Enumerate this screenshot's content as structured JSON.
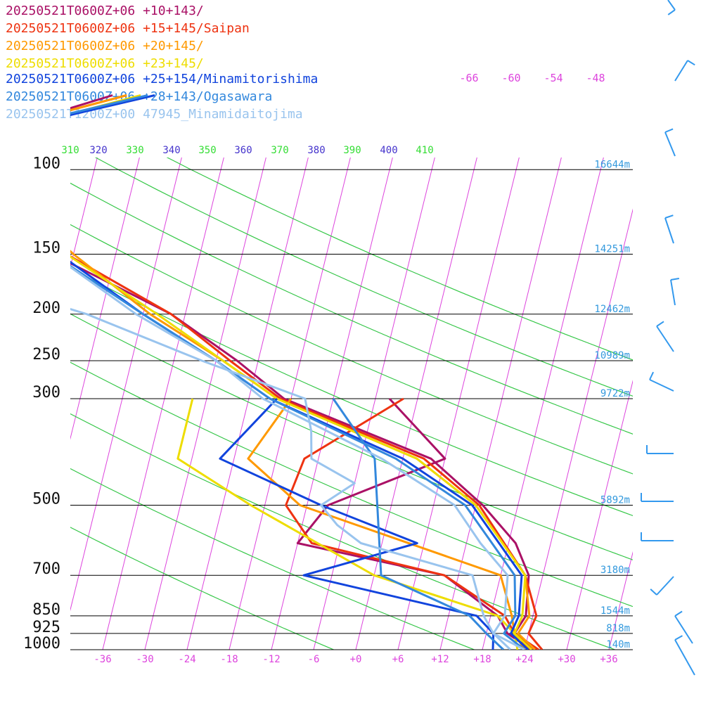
{
  "legend": [
    {
      "text": "20250521T0600Z+06 +10+143/",
      "color": "#aa1166"
    },
    {
      "text": "20250521T0600Z+06 +15+145/Saipan",
      "color": "#ee3311"
    },
    {
      "text": "20250521T0600Z+06 +20+145/",
      "color": "#ff9900"
    },
    {
      "text": "20250521T0600Z+06 +23+145/",
      "color": "#eedd00"
    },
    {
      "text": "20250521T0600Z+06 +25+154/Minamitorishima",
      "color": "#1144dd"
    },
    {
      "text": "20250521T0600Z+06 +28+143/Ogasawara",
      "color": "#3388dd"
    },
    {
      "text": "20250521T1200Z+00 47945_Minamidaitojima",
      "color": "#99c4ee"
    }
  ],
  "chart_data": {
    "type": "line",
    "subtype": "skew-T log-p diagram",
    "x_axis": {
      "label": "Temperature (°C)",
      "ticks": [
        "-36",
        "-30",
        "-24",
        "-18",
        "-12",
        "-6",
        "+0",
        "+6",
        "+12",
        "+18",
        "+24",
        "+30",
        "+36"
      ],
      "range": [
        -40,
        40
      ]
    },
    "y_axis": {
      "label": "Pressure (hPa)",
      "scale": "log",
      "ticks": [
        "100",
        "150",
        "200",
        "250",
        "300",
        "500",
        "700",
        "850",
        "925",
        "1000"
      ],
      "range": [
        100,
        1000
      ]
    },
    "heights": [
      {
        "p": 100,
        "label": "16644m"
      },
      {
        "p": 150,
        "label": "14251m"
      },
      {
        "p": 200,
        "label": "12462m"
      },
      {
        "p": 250,
        "label": "10989m"
      },
      {
        "p": 300,
        "label": "9722m"
      },
      {
        "p": 500,
        "label": "5892m"
      },
      {
        "p": 700,
        "label": "3180m"
      },
      {
        "p": 850,
        "label": "1544m"
      },
      {
        "p": 925,
        "label": "818m"
      },
      {
        "p": 1000,
        "label": "140m"
      }
    ],
    "mixing_ratio_labels": [
      "-66",
      "-60",
      "-54",
      "-48"
    ],
    "theta_labels": [
      {
        "text": "310",
        "color": "#33dd33"
      },
      {
        "text": "320",
        "color": "#4433cc"
      },
      {
        "text": "330",
        "color": "#33dd33"
      },
      {
        "text": "340",
        "color": "#4433cc"
      },
      {
        "text": "350",
        "color": "#33dd33"
      },
      {
        "text": "360",
        "color": "#4433cc"
      },
      {
        "text": "370",
        "color": "#33dd33"
      },
      {
        "text": "380",
        "color": "#4433cc"
      },
      {
        "text": "390",
        "color": "#33dd33"
      },
      {
        "text": "400",
        "color": "#4433cc"
      },
      {
        "text": "410",
        "color": "#33dd33"
      }
    ],
    "colors": {
      "isotherm": "#dd44dd",
      "dry_adiabat": "#4433cc",
      "moist_adiabat": "#33dd33",
      "isobar": "#000000",
      "wind": "#3399ee"
    },
    "series": [
      {
        "name": "20250521T0600Z+06 +10+143/",
        "color": "#aa1166",
        "temperature": [
          [
            1000,
            25.5
          ],
          [
            925,
            22
          ],
          [
            850,
            23
          ],
          [
            700,
            22
          ],
          [
            600,
            19
          ],
          [
            500,
            13
          ],
          [
            400,
            4
          ],
          [
            300,
            -19
          ],
          [
            250,
            -27
          ],
          [
            200,
            -38
          ],
          [
            150,
            -57
          ],
          [
            125,
            -72
          ],
          [
            100,
            -78
          ],
          [
            80,
            -66
          ],
          [
            70,
            -54
          ]
        ],
        "dewpoint": [
          [
            1000,
            25
          ],
          [
            925,
            21
          ],
          [
            850,
            19
          ],
          [
            700,
            10
          ],
          [
            600,
            -12
          ],
          [
            500,
            -9
          ],
          [
            400,
            6
          ],
          [
            300,
            -4
          ]
        ]
      },
      {
        "name": "20250521T0600Z+06 +15+145/Saipan",
        "color": "#ee3311",
        "temperature": [
          [
            1000,
            26.5
          ],
          [
            925,
            24
          ],
          [
            850,
            24.5
          ],
          [
            700,
            21.5
          ],
          [
            500,
            12.5
          ],
          [
            400,
            3
          ],
          [
            300,
            -19.5
          ],
          [
            250,
            -28
          ],
          [
            200,
            -38
          ],
          [
            150,
            -55
          ],
          [
            100,
            -71
          ],
          [
            80,
            -66
          ],
          [
            70,
            -52
          ]
        ],
        "dewpoint": [
          [
            1000,
            26
          ],
          [
            925,
            22
          ],
          [
            850,
            20
          ],
          [
            700,
            10
          ],
          [
            600,
            -10
          ],
          [
            500,
            -15
          ],
          [
            400,
            -14
          ],
          [
            300,
            -2
          ]
        ]
      },
      {
        "name": "20250521T0600Z+06 +20+145/",
        "color": "#ff9900",
        "temperature": [
          [
            1000,
            25.5
          ],
          [
            925,
            22.5
          ],
          [
            850,
            23.5
          ],
          [
            700,
            21.5
          ],
          [
            500,
            12
          ],
          [
            400,
            2
          ],
          [
            300,
            -20
          ],
          [
            250,
            -29
          ],
          [
            200,
            -41
          ],
          [
            150,
            -54
          ],
          [
            100,
            -70
          ],
          [
            80,
            -66
          ],
          [
            70,
            -52
          ]
        ],
        "dewpoint": [
          [
            1000,
            24
          ],
          [
            925,
            22
          ],
          [
            850,
            21
          ],
          [
            700,
            18
          ],
          [
            500,
            -13
          ],
          [
            400,
            -22
          ],
          [
            300,
            -18
          ]
        ]
      },
      {
        "name": "20250521T0600Z+06 +23+145/",
        "color": "#eedd00",
        "temperature": [
          [
            1000,
            25
          ],
          [
            925,
            22
          ],
          [
            850,
            22.5
          ],
          [
            700,
            21.5
          ],
          [
            500,
            12
          ],
          [
            400,
            2
          ],
          [
            300,
            -20
          ],
          [
            250,
            -29
          ],
          [
            200,
            -40
          ],
          [
            150,
            -55
          ],
          [
            100,
            -70
          ],
          [
            80,
            -64
          ],
          [
            70,
            -50
          ]
        ],
        "dewpoint": [
          [
            1000,
            23
          ],
          [
            925,
            22
          ],
          [
            850,
            19
          ],
          [
            700,
            0
          ],
          [
            500,
            -20
          ],
          [
            400,
            -32
          ],
          [
            300,
            -32
          ]
        ]
      },
      {
        "name": "20250521T0600Z+06 +25+154/Minamitorishima",
        "color": "#1144dd",
        "temperature": [
          [
            1000,
            24.5
          ],
          [
            925,
            21.5
          ],
          [
            850,
            22
          ],
          [
            700,
            21
          ],
          [
            500,
            11.5
          ],
          [
            400,
            0
          ],
          [
            300,
            -21
          ],
          [
            250,
            -30
          ],
          [
            200,
            -42
          ],
          [
            150,
            -56
          ],
          [
            100,
            -70
          ],
          [
            80,
            -64
          ],
          [
            70,
            -48
          ]
        ],
        "dewpoint": [
          [
            1000,
            19.5
          ],
          [
            925,
            19
          ],
          [
            850,
            16
          ],
          [
            700,
            -10
          ],
          [
            600,
            5
          ],
          [
            500,
            -10
          ],
          [
            400,
            -26
          ],
          [
            300,
            -20
          ]
        ]
      },
      {
        "name": "20250521T0600Z+06 +28+143/Ogasawara",
        "color": "#3388dd",
        "temperature": [
          [
            1000,
            24
          ],
          [
            925,
            20.5
          ],
          [
            850,
            21.5
          ],
          [
            700,
            20
          ],
          [
            500,
            10.5
          ],
          [
            400,
            -1
          ],
          [
            300,
            -21
          ],
          [
            250,
            -30
          ],
          [
            200,
            -42
          ],
          [
            150,
            -57
          ],
          [
            100,
            -71
          ],
          [
            80,
            -65
          ],
          [
            70,
            -49
          ]
        ],
        "dewpoint": [
          [
            1000,
            21
          ],
          [
            925,
            18
          ],
          [
            850,
            15
          ],
          [
            700,
            1
          ],
          [
            500,
            -2
          ],
          [
            400,
            -4
          ],
          [
            300,
            -12
          ]
        ]
      },
      {
        "name": "20250521T1200Z+00 47945_Minamidaitojima",
        "color": "#99c4ee",
        "temperature": [
          [
            1000,
            24
          ],
          [
            925,
            19
          ],
          [
            850,
            20
          ],
          [
            700,
            19
          ],
          [
            600,
            14
          ],
          [
            500,
            9
          ],
          [
            400,
            -3
          ],
          [
            300,
            -22
          ],
          [
            250,
            -30
          ],
          [
            200,
            -43
          ],
          [
            150,
            -57
          ],
          [
            125,
            -67
          ],
          [
            100,
            -75
          ]
        ],
        "dewpoint": [
          [
            1000,
            22
          ],
          [
            925,
            19
          ],
          [
            850,
            17
          ],
          [
            700,
            14
          ],
          [
            600,
            -3
          ],
          [
            550,
            -7
          ],
          [
            500,
            -10
          ],
          [
            450,
            -6
          ],
          [
            400,
            -13
          ],
          [
            350,
            -14
          ],
          [
            300,
            -16
          ],
          [
            250,
            -32
          ],
          [
            200,
            -50
          ],
          [
            150,
            -80
          ],
          [
            120,
            -92
          ],
          [
            100,
            -90
          ]
        ]
      }
    ]
  }
}
